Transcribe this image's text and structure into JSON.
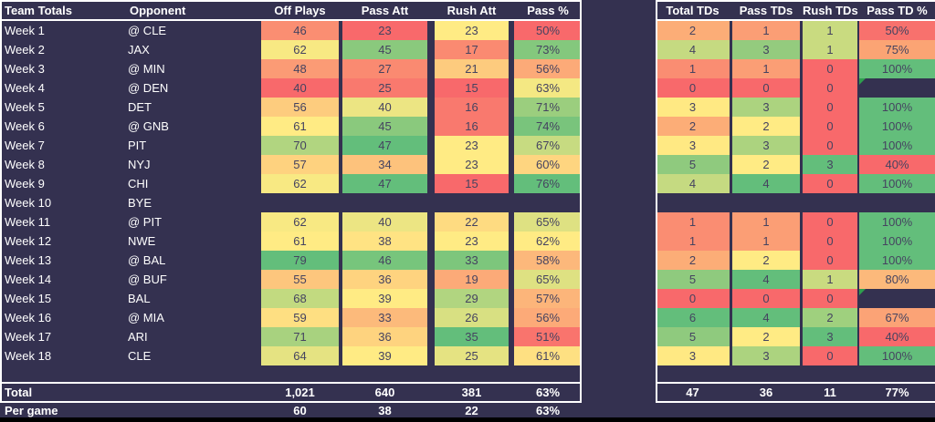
{
  "colors": {
    "background": "#343150",
    "border": "#FFFFFF",
    "cell_text": "#454360",
    "flag_green": "#2E9E4E",
    "scale_min_red": "#F8696B",
    "scale_mid_yellow": "#FFEB84",
    "scale_max_green": "#63BE7B"
  },
  "left": {
    "headers": [
      "Team Totals",
      "Opponent",
      "Off Plays",
      "Pass Att",
      "Rush Att",
      "Pass %"
    ],
    "rows": [
      {
        "week": "Week 1",
        "opp": "@ CLE",
        "cells": [
          {
            "v": "46",
            "c": "#FA8E72"
          },
          {
            "v": "23",
            "c": "#F8696B"
          },
          {
            "v": "23",
            "c": "#FFEB84"
          },
          {
            "v": "50%",
            "c": "#F8696B"
          }
        ]
      },
      {
        "week": "Week 2",
        "opp": "JAX",
        "cells": [
          {
            "v": "62",
            "c": "#F8E983"
          },
          {
            "v": "45",
            "c": "#8AC97D"
          },
          {
            "v": "17",
            "c": "#FA8A71"
          },
          {
            "v": "73%",
            "c": "#84C87D"
          }
        ]
      },
      {
        "week": "Week 3",
        "opp": "@ MIN",
        "cells": [
          {
            "v": "48",
            "c": "#FB9B75"
          },
          {
            "v": "27",
            "c": "#FA8A71"
          },
          {
            "v": "21",
            "c": "#FDCB7E"
          },
          {
            "v": "56%",
            "c": "#FCAA78"
          }
        ]
      },
      {
        "week": "Week 4",
        "opp": "@ DEN",
        "cells": [
          {
            "v": "40",
            "c": "#F8696B"
          },
          {
            "v": "25",
            "c": "#F9796E"
          },
          {
            "v": "15",
            "c": "#F8696B"
          },
          {
            "v": "63%",
            "c": "#F4E883"
          }
        ]
      },
      {
        "week": "Week 5",
        "opp": "DET",
        "cells": [
          {
            "v": "56",
            "c": "#FDCC7E"
          },
          {
            "v": "40",
            "c": "#ECE583"
          },
          {
            "v": "16",
            "c": "#F9796E"
          },
          {
            "v": "71%",
            "c": "#9BCE7E"
          }
        ]
      },
      {
        "week": "Week 6",
        "opp": "@ GNB",
        "cells": [
          {
            "v": "61",
            "c": "#FFEB84"
          },
          {
            "v": "45",
            "c": "#8AC97D"
          },
          {
            "v": "16",
            "c": "#F9796E"
          },
          {
            "v": "74%",
            "c": "#79C47C"
          }
        ]
      },
      {
        "week": "Week 7",
        "opp": "PIT",
        "cells": [
          {
            "v": "70",
            "c": "#B1D580"
          },
          {
            "v": "47",
            "c": "#63BE7B"
          },
          {
            "v": "23",
            "c": "#FFEB84"
          },
          {
            "v": "67%",
            "c": "#C7DB81"
          }
        ]
      },
      {
        "week": "Week 8",
        "opp": "NYJ",
        "cells": [
          {
            "v": "57",
            "c": "#FED27F"
          },
          {
            "v": "34",
            "c": "#FDC27C"
          },
          {
            "v": "23",
            "c": "#FFEB84"
          },
          {
            "v": "60%",
            "c": "#FED580"
          }
        ]
      },
      {
        "week": "Week 9",
        "opp": "CHI",
        "cells": [
          {
            "v": "62",
            "c": "#F8E983"
          },
          {
            "v": "47",
            "c": "#63BE7B"
          },
          {
            "v": "15",
            "c": "#F8696B"
          },
          {
            "v": "76%",
            "c": "#63BE7B"
          }
        ]
      },
      {
        "week": "Week 10",
        "opp": "BYE",
        "cells": null
      },
      {
        "week": "Week 11",
        "opp": "@ PIT",
        "cells": [
          {
            "v": "62",
            "c": "#F8E983"
          },
          {
            "v": "40",
            "c": "#ECE583"
          },
          {
            "v": "22",
            "c": "#FEDB81"
          },
          {
            "v": "65%",
            "c": "#DEE182"
          }
        ]
      },
      {
        "week": "Week 12",
        "opp": "NWE",
        "cells": [
          {
            "v": "61",
            "c": "#FFEB84"
          },
          {
            "v": "38",
            "c": "#FFE383"
          },
          {
            "v": "23",
            "c": "#FFEB84"
          },
          {
            "v": "62%",
            "c": "#FFEB84"
          }
        ]
      },
      {
        "week": "Week 13",
        "opp": "@ BAL",
        "cells": [
          {
            "v": "79",
            "c": "#63BE7B"
          },
          {
            "v": "46",
            "c": "#77C57C"
          },
          {
            "v": "33",
            "c": "#7DC67C"
          },
          {
            "v": "58%",
            "c": "#FCB87B"
          }
        ]
      },
      {
        "week": "Week 14",
        "opp": "@ BUF",
        "cells": [
          {
            "v": "55",
            "c": "#FDC67D"
          },
          {
            "v": "36",
            "c": "#FED37F"
          },
          {
            "v": "19",
            "c": "#FCAA78"
          },
          {
            "v": "65%",
            "c": "#DEE182"
          }
        ]
      },
      {
        "week": "Week 15",
        "opp": "BAL",
        "cells": [
          {
            "v": "68",
            "c": "#C2DA80"
          },
          {
            "v": "39",
            "c": "#FFEB84"
          },
          {
            "v": "29",
            "c": "#B1D580"
          },
          {
            "v": "57%",
            "c": "#FCB57A"
          }
        ]
      },
      {
        "week": "Week 16",
        "opp": "@ MIA",
        "cells": [
          {
            "v": "59",
            "c": "#FEDF82"
          },
          {
            "v": "33",
            "c": "#FCBA7B"
          },
          {
            "v": "26",
            "c": "#D8E082"
          },
          {
            "v": "56%",
            "c": "#FCAA78"
          }
        ]
      },
      {
        "week": "Week 17",
        "opp": "ARI",
        "cells": [
          {
            "v": "71",
            "c": "#A8D27F"
          },
          {
            "v": "36",
            "c": "#FED37F"
          },
          {
            "v": "35",
            "c": "#63BE7B"
          },
          {
            "v": "51%",
            "c": "#F9746D"
          }
        ]
      },
      {
        "week": "Week 18",
        "opp": "CLE",
        "cells": [
          {
            "v": "64",
            "c": "#E5E382"
          },
          {
            "v": "39",
            "c": "#FFEB84"
          },
          {
            "v": "25",
            "c": "#E5E382"
          },
          {
            "v": "61%",
            "c": "#FEE082"
          }
        ]
      }
    ],
    "total": {
      "label": "Total",
      "values": [
        "1,021",
        "640",
        "381",
        "63%"
      ]
    },
    "per_game": {
      "label": "Per game",
      "values": [
        "60",
        "38",
        "22",
        "63%"
      ]
    }
  },
  "right": {
    "headers": [
      "Total TDs",
      "Pass TDs",
      "Rush TDs",
      "Pass TD %"
    ],
    "rows": [
      {
        "cells": [
          {
            "v": "2",
            "c": "#FCAD77"
          },
          {
            "v": "1",
            "c": "#FB9E75"
          },
          {
            "v": "1",
            "c": "#C9DB80"
          },
          {
            "v": "50%",
            "c": "#F8716D"
          }
        ]
      },
      {
        "cells": [
          {
            "v": "4",
            "c": "#C5DA81"
          },
          {
            "v": "3",
            "c": "#94CB7E"
          },
          {
            "v": "1",
            "c": "#C9DB80"
          },
          {
            "v": "75%",
            "c": "#FBA474"
          }
        ]
      },
      {
        "cells": [
          {
            "v": "1",
            "c": "#FA8D72"
          },
          {
            "v": "1",
            "c": "#FB9E75"
          },
          {
            "v": "0",
            "c": "#F8696B"
          },
          {
            "v": "100%",
            "c": "#63BE7B"
          }
        ]
      },
      {
        "cells": [
          {
            "v": "0",
            "c": "#F8696B"
          },
          {
            "v": "0",
            "c": "#F8696B"
          },
          {
            "v": "0",
            "c": "#F8696B"
          },
          {
            "v": "",
            "c": "",
            "flag": true
          }
        ]
      },
      {
        "cells": [
          {
            "v": "3",
            "c": "#FFE983"
          },
          {
            "v": "3",
            "c": "#ACD37F"
          },
          {
            "v": "0",
            "c": "#F8696B"
          },
          {
            "v": "100%",
            "c": "#63BE7B"
          }
        ]
      },
      {
        "cells": [
          {
            "v": "2",
            "c": "#FCAD77"
          },
          {
            "v": "2",
            "c": "#FFEB84"
          },
          {
            "v": "0",
            "c": "#F8696B"
          },
          {
            "v": "100%",
            "c": "#63BE7B"
          }
        ]
      },
      {
        "cells": [
          {
            "v": "3",
            "c": "#FFE983"
          },
          {
            "v": "3",
            "c": "#ACD37F"
          },
          {
            "v": "0",
            "c": "#F8696B"
          },
          {
            "v": "100%",
            "c": "#63BE7B"
          }
        ]
      },
      {
        "cells": [
          {
            "v": "5",
            "c": "#8FCA7E"
          },
          {
            "v": "2",
            "c": "#FFEB84"
          },
          {
            "v": "3",
            "c": "#63BE7B"
          },
          {
            "v": "40%",
            "c": "#F8696B"
          }
        ]
      },
      {
        "cells": [
          {
            "v": "4",
            "c": "#C5DA81"
          },
          {
            "v": "4",
            "c": "#63BE7B"
          },
          {
            "v": "0",
            "c": "#F8696B"
          },
          {
            "v": "100%",
            "c": "#63BE7B"
          }
        ]
      },
      {
        "cells": null
      },
      {
        "cells": [
          {
            "v": "1",
            "c": "#FA8D72"
          },
          {
            "v": "1",
            "c": "#FB9E75"
          },
          {
            "v": "0",
            "c": "#F8696B"
          },
          {
            "v": "100%",
            "c": "#63BE7B"
          }
        ]
      },
      {
        "cells": [
          {
            "v": "1",
            "c": "#FA8D72"
          },
          {
            "v": "1",
            "c": "#FB9E75"
          },
          {
            "v": "0",
            "c": "#F8696B"
          },
          {
            "v": "100%",
            "c": "#63BE7B"
          }
        ]
      },
      {
        "cells": [
          {
            "v": "2",
            "c": "#FCAD77"
          },
          {
            "v": "2",
            "c": "#FFEB84"
          },
          {
            "v": "0",
            "c": "#F8696B"
          },
          {
            "v": "100%",
            "c": "#63BE7B"
          }
        ]
      },
      {
        "cells": [
          {
            "v": "5",
            "c": "#8FCA7E"
          },
          {
            "v": "4",
            "c": "#63BE7B"
          },
          {
            "v": "1",
            "c": "#C9DB80"
          },
          {
            "v": "80%",
            "c": "#FCB97B"
          }
        ]
      },
      {
        "cells": [
          {
            "v": "0",
            "c": "#F8696B"
          },
          {
            "v": "0",
            "c": "#F8696B"
          },
          {
            "v": "0",
            "c": "#F8696B"
          },
          {
            "v": "",
            "c": "",
            "flag": true
          }
        ]
      },
      {
        "cells": [
          {
            "v": "6",
            "c": "#63BE7B"
          },
          {
            "v": "4",
            "c": "#63BE7B"
          },
          {
            "v": "2",
            "c": "#9FD07E"
          },
          {
            "v": "67%",
            "c": "#FBA376"
          }
        ]
      },
      {
        "cells": [
          {
            "v": "5",
            "c": "#8FCA7E"
          },
          {
            "v": "2",
            "c": "#FFEB84"
          },
          {
            "v": "3",
            "c": "#63BE7B"
          },
          {
            "v": "40%",
            "c": "#F8696B"
          }
        ]
      },
      {
        "cells": [
          {
            "v": "3",
            "c": "#FFE983"
          },
          {
            "v": "3",
            "c": "#ACD37F"
          },
          {
            "v": "0",
            "c": "#F8696B"
          },
          {
            "v": "100%",
            "c": "#63BE7B"
          }
        ]
      }
    ],
    "total": {
      "values": [
        "47",
        "36",
        "11",
        "77%"
      ]
    }
  }
}
